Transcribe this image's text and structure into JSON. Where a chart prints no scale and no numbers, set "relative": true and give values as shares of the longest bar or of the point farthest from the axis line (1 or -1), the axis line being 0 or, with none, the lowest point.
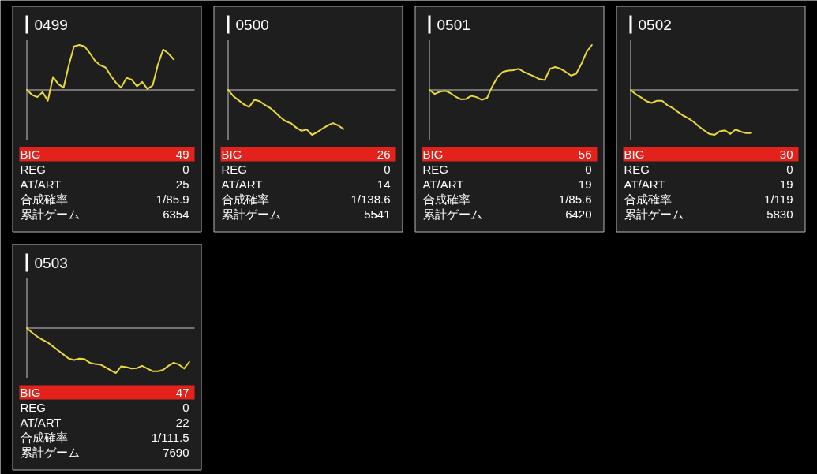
{
  "chart_data": [
    {
      "type": "line",
      "title": "0499",
      "relative": true,
      "color": "#ecd93a",
      "categories": [
        null,
        null,
        null,
        null,
        null,
        null,
        null,
        null,
        null,
        null,
        null,
        null,
        null,
        null,
        null,
        null,
        null,
        null,
        null,
        null,
        null,
        null,
        null,
        null,
        null,
        null,
        null,
        null,
        null,
        null,
        null,
        null,
        null
      ],
      "values": [
        0,
        -0.11,
        -0.16,
        -0.05,
        -0.24,
        0.29,
        0.13,
        0.05,
        0.55,
        0.97,
        1,
        0.97,
        0.82,
        0.65,
        0.55,
        0.5,
        0.32,
        0.16,
        0.05,
        0.27,
        0.23,
        0.08,
        0.18,
        0.02,
        0.1,
        0.56,
        0.9,
        0.81,
        0.68,
        null,
        null,
        null,
        null
      ],
      "annotations": [
        "BIG",
        "49",
        "REG",
        "0",
        "AT/ART",
        "25",
        "合成確率",
        "1/85.9",
        "累計ゲーム",
        "6354"
      ]
    },
    {
      "type": "line",
      "title": "0500",
      "relative": true,
      "color": "#ecd93a",
      "categories": [
        null,
        null,
        null,
        null,
        null,
        null,
        null,
        null,
        null,
        null,
        null,
        null,
        null,
        null,
        null,
        null,
        null,
        null,
        null,
        null,
        null,
        null,
        null,
        null,
        null,
        null,
        null,
        null,
        null,
        null,
        null,
        null,
        null
      ],
      "values": [
        0,
        -0.14,
        -0.23,
        -0.32,
        -0.38,
        -0.22,
        -0.25,
        -0.33,
        -0.4,
        -0.5,
        -0.61,
        -0.7,
        -0.74,
        -0.84,
        -0.91,
        -0.88,
        -1,
        -0.94,
        -0.86,
        -0.79,
        -0.74,
        -0.79,
        -0.87,
        null,
        null,
        null,
        null,
        null,
        null,
        null,
        null,
        null,
        null
      ],
      "annotations": [
        "BIG",
        "26",
        "REG",
        "0",
        "AT/ART",
        "14",
        "合成確率",
        "1/138.6",
        "累計ゲーム",
        "5541"
      ]
    },
    {
      "type": "line",
      "title": "0501",
      "relative": true,
      "color": "#ecd93a",
      "categories": [
        null,
        null,
        null,
        null,
        null,
        null,
        null,
        null,
        null,
        null,
        null,
        null,
        null,
        null,
        null,
        null,
        null,
        null,
        null,
        null,
        null,
        null,
        null,
        null,
        null,
        null,
        null,
        null,
        null,
        null,
        null,
        null,
        null
      ],
      "values": [
        0,
        -0.09,
        -0.04,
        -0.02,
        -0.07,
        -0.15,
        -0.21,
        -0.2,
        -0.13,
        -0.16,
        -0.22,
        -0.18,
        0.08,
        0.29,
        0.4,
        0.43,
        0.44,
        0.47,
        0.4,
        0.35,
        0.3,
        0.24,
        0.22,
        0.47,
        0.51,
        0.47,
        0.4,
        0.32,
        0.36,
        0.58,
        0.85,
        1,
        null
      ],
      "annotations": [
        "BIG",
        "56",
        "REG",
        "0",
        "AT/ART",
        "19",
        "合成確率",
        "1/85.6",
        "累計ゲーム",
        "6420"
      ]
    },
    {
      "type": "line",
      "title": "0502",
      "relative": true,
      "color": "#ecd93a",
      "categories": [
        null,
        null,
        null,
        null,
        null,
        null,
        null,
        null,
        null,
        null,
        null,
        null,
        null,
        null,
        null,
        null,
        null,
        null,
        null,
        null,
        null,
        null,
        null,
        null,
        null,
        null,
        null,
        null,
        null,
        null,
        null,
        null,
        null
      ],
      "values": [
        0,
        -0.1,
        -0.17,
        -0.25,
        -0.29,
        -0.24,
        -0.24,
        -0.34,
        -0.4,
        -0.49,
        -0.57,
        -0.63,
        -0.71,
        -0.81,
        -0.9,
        -0.98,
        -1,
        -0.92,
        -0.9,
        -0.98,
        -0.88,
        -0.93,
        -0.96,
        -0.96,
        null,
        null,
        null,
        null,
        null,
        null,
        null,
        null,
        null
      ],
      "annotations": [
        "BIG",
        "30",
        "REG",
        "0",
        "AT/ART",
        "19",
        "合成確率",
        "1/119",
        "累計ゲーム",
        "5830"
      ]
    },
    {
      "type": "line",
      "title": "0503",
      "relative": true,
      "color": "#ecd93a",
      "categories": [
        null,
        null,
        null,
        null,
        null,
        null,
        null,
        null,
        null,
        null,
        null,
        null,
        null,
        null,
        null,
        null,
        null,
        null,
        null,
        null,
        null,
        null,
        null,
        null,
        null,
        null,
        null,
        null,
        null,
        null,
        null,
        null,
        null
      ],
      "values": [
        0,
        -0.1,
        -0.19,
        -0.26,
        -0.32,
        -0.41,
        -0.5,
        -0.59,
        -0.68,
        -0.71,
        -0.68,
        -0.69,
        -0.77,
        -0.8,
        -0.81,
        -0.87,
        -0.94,
        -1,
        -0.85,
        -0.87,
        -0.9,
        -0.89,
        -0.84,
        -0.9,
        -0.96,
        -0.96,
        -0.93,
        -0.84,
        -0.77,
        -0.81,
        -0.9,
        -0.75,
        null
      ],
      "annotations": [
        "BIG",
        "47",
        "REG",
        "0",
        "AT/ART",
        "22",
        "合成確率",
        "1/111.5",
        "累計ゲーム",
        "7690"
      ]
    }
  ]
}
